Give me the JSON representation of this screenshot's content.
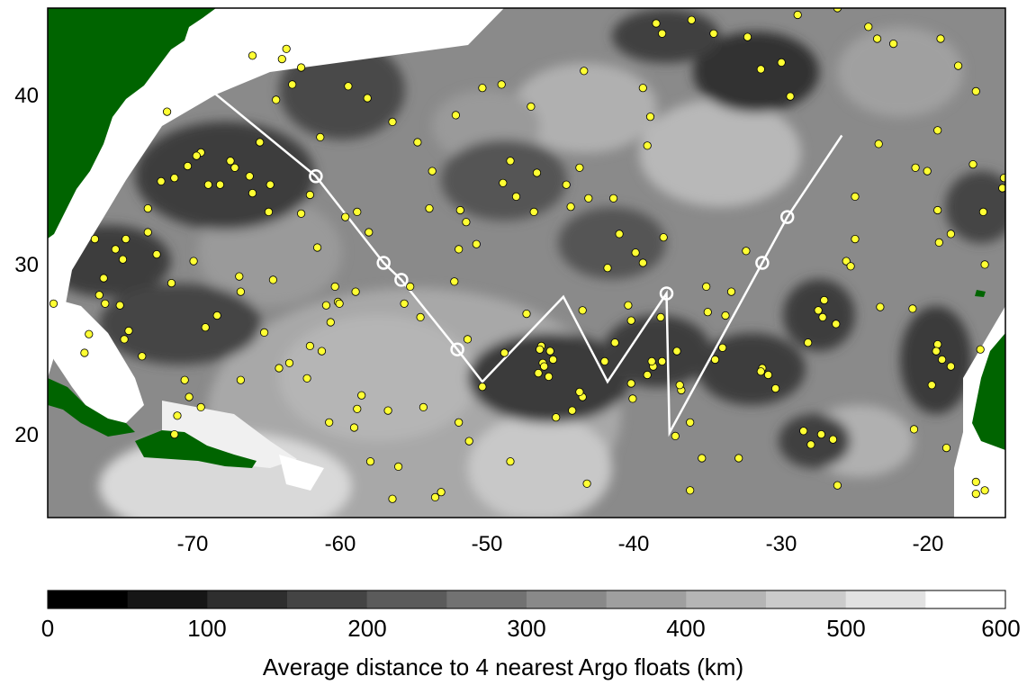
{
  "map": {
    "lon_range": [
      -80,
      -15
    ],
    "lat_range": [
      15,
      45
    ],
    "lon_ticks": [
      -70,
      -60,
      -50,
      -40,
      -30,
      -20
    ],
    "lat_ticks": [
      20,
      30,
      40
    ],
    "lon_tick_labels": [
      "-70",
      "-60",
      "-50",
      "-40",
      "-30",
      "-20"
    ],
    "lat_tick_labels": [
      "20",
      "30",
      "40"
    ],
    "colors": {
      "land": "#006400",
      "float": "#ffff33",
      "track": "#ffffff",
      "ocean_mid": "#808080"
    },
    "track_waypoints": [
      {
        "lon": -68.7,
        "lat": 40.0
      },
      {
        "lon": -61.8,
        "lat": 35.1
      },
      {
        "lon": -57.2,
        "lat": 30.0
      },
      {
        "lon": -56.0,
        "lat": 29.0
      },
      {
        "lon": -52.2,
        "lat": 24.9
      },
      {
        "lon": -50.5,
        "lat": 23.0
      },
      {
        "lon": -45.0,
        "lat": 28.0
      },
      {
        "lon": -42.0,
        "lat": 23.0
      },
      {
        "lon": -38.0,
        "lat": 28.2
      },
      {
        "lon": -37.8,
        "lat": 20.0
      },
      {
        "lon": -31.5,
        "lat": 30.0
      },
      {
        "lon": -29.8,
        "lat": 32.7
      },
      {
        "lon": -26.1,
        "lat": 37.5
      }
    ],
    "stations": [
      {
        "lon": -61.8,
        "lat": 35.1
      },
      {
        "lon": -57.2,
        "lat": 30.0
      },
      {
        "lon": -56.0,
        "lat": 29.0
      },
      {
        "lon": -52.2,
        "lat": 24.9
      },
      {
        "lon": -38.0,
        "lat": 28.2
      },
      {
        "lon": -31.5,
        "lat": 30.0
      },
      {
        "lon": -29.8,
        "lat": 32.7
      }
    ],
    "floats": [
      [
        -71.9,
        38.9
      ],
      [
        -65.6,
        37.1
      ],
      [
        -61.5,
        37.4
      ],
      [
        -59.6,
        40.4
      ],
      [
        -58.3,
        39.7
      ],
      [
        -56.6,
        38.3
      ],
      [
        -54.9,
        37.1
      ],
      [
        -52.3,
        38.7
      ],
      [
        -50.5,
        40.3
      ],
      [
        -49.2,
        40.5
      ],
      [
        -47.2,
        39.2
      ],
      [
        -46.8,
        35.3
      ],
      [
        -44.8,
        34.6
      ],
      [
        -43.9,
        35.6
      ],
      [
        -43.6,
        41.3
      ],
      [
        -41.6,
        33.8
      ],
      [
        -39.6,
        40.3
      ],
      [
        -39.1,
        38.6
      ],
      [
        -39.3,
        36.9
      ],
      [
        -38.7,
        44.1
      ],
      [
        -38.3,
        43.5
      ],
      [
        -36.3,
        44.3
      ],
      [
        -34.8,
        43.5
      ],
      [
        -32.5,
        43.3
      ],
      [
        -31.6,
        41.4
      ],
      [
        -30.2,
        41.8
      ],
      [
        -29.6,
        39.8
      ],
      [
        -29.1,
        44.6
      ],
      [
        -26.4,
        45.0
      ],
      [
        -24.3,
        43.9
      ],
      [
        -23.7,
        43.2
      ],
      [
        -22.6,
        42.9
      ],
      [
        -19.4,
        43.2
      ],
      [
        -18.2,
        41.6
      ],
      [
        -17.0,
        40.1
      ],
      [
        -19.6,
        37.8
      ],
      [
        -21.1,
        35.6
      ],
      [
        -20.3,
        35.4
      ],
      [
        -17.2,
        35.8
      ],
      [
        -15.1,
        35.0
      ],
      [
        -15.2,
        34.4
      ],
      [
        -16.5,
        33.0
      ],
      [
        -18.7,
        31.7
      ],
      [
        -19.6,
        33.1
      ],
      [
        -19.5,
        31.2
      ],
      [
        -16.4,
        29.9
      ],
      [
        -16.7,
        24.9
      ],
      [
        -19.6,
        25.2
      ],
      [
        -19.7,
        24.8
      ],
      [
        -19.3,
        24.3
      ],
      [
        -18.7,
        23.9
      ],
      [
        -20.0,
        22.8
      ],
      [
        -21.3,
        27.3
      ],
      [
        -23.5,
        27.4
      ],
      [
        -25.8,
        30.1
      ],
      [
        -25.5,
        29.8
      ],
      [
        -25.2,
        33.9
      ],
      [
        -25.2,
        31.4
      ],
      [
        -23.6,
        37.0
      ],
      [
        -27.3,
        27.8
      ],
      [
        -27.4,
        26.8
      ],
      [
        -27.7,
        27.2
      ],
      [
        -28.4,
        25.3
      ],
      [
        -26.5,
        26.4
      ],
      [
        -28.2,
        19.3
      ],
      [
        -27.5,
        19.9
      ],
      [
        -26.7,
        19.6
      ],
      [
        -28.7,
        20.1
      ],
      [
        -26.4,
        16.9
      ],
      [
        -21.2,
        20.2
      ],
      [
        -19.0,
        19.1
      ],
      [
        -17.0,
        17.1
      ],
      [
        -17.0,
        16.4
      ],
      [
        -16.4,
        16.6
      ],
      [
        -30.6,
        22.6
      ],
      [
        -31.1,
        23.4
      ],
      [
        -31.5,
        23.8
      ],
      [
        -31.6,
        23.6
      ],
      [
        -34.7,
        24.3
      ],
      [
        -34.2,
        25.0
      ],
      [
        -34.0,
        26.9
      ],
      [
        -33.6,
        28.3
      ],
      [
        -35.2,
        27.1
      ],
      [
        -35.3,
        28.6
      ],
      [
        -32.6,
        30.7
      ],
      [
        -33.1,
        18.5
      ],
      [
        -35.6,
        18.5
      ],
      [
        -36.4,
        20.6
      ],
      [
        -37.0,
        22.5
      ],
      [
        -38.3,
        24.2
      ],
      [
        -38.9,
        23.9
      ],
      [
        -39.3,
        23.4
      ],
      [
        -39.0,
        24.2
      ],
      [
        -40.4,
        22.9
      ],
      [
        -42.2,
        24.2
      ],
      [
        -43.7,
        22.1
      ],
      [
        -43.9,
        22.4
      ],
      [
        -44.4,
        21.3
      ],
      [
        -45.5,
        20.9
      ],
      [
        -45.7,
        24.3
      ],
      [
        -45.9,
        24.8
      ],
      [
        -46.4,
        24.1
      ],
      [
        -46.5,
        25.1
      ],
      [
        -47.5,
        27.0
      ],
      [
        -46.0,
        23.3
      ],
      [
        -46.7,
        23.5
      ],
      [
        -43.7,
        27.2
      ],
      [
        -40.6,
        27.5
      ],
      [
        -40.4,
        26.6
      ],
      [
        -41.5,
        25.3
      ],
      [
        -41.2,
        31.7
      ],
      [
        -42.0,
        29.7
      ],
      [
        -40.1,
        30.6
      ],
      [
        -39.6,
        30.0
      ],
      [
        -38.2,
        31.5
      ],
      [
        -38.4,
        26.8
      ],
      [
        -37.3,
        24.8
      ],
      [
        -37.1,
        22.8
      ],
      [
        -36.4,
        16.6
      ],
      [
        -37.4,
        19.8
      ],
      [
        -40.3,
        22.0
      ],
      [
        -43.4,
        17.0
      ],
      [
        -48.6,
        18.3
      ],
      [
        -51.4,
        19.5
      ],
      [
        -52.1,
        20.6
      ],
      [
        -50.5,
        22.7
      ],
      [
        -49.0,
        24.7
      ],
      [
        -46.6,
        24.9
      ],
      [
        -46.3,
        23.9
      ],
      [
        -54.5,
        21.5
      ],
      [
        -56.9,
        21.3
      ],
      [
        -53.7,
        16.2
      ],
      [
        -53.3,
        16.5
      ],
      [
        -56.2,
        18.0
      ],
      [
        -56.6,
        16.1
      ],
      [
        -54.7,
        26.8
      ],
      [
        -55.8,
        27.6
      ],
      [
        -55.4,
        28.6
      ],
      [
        -51.5,
        25.5
      ],
      [
        -52.4,
        28.9
      ],
      [
        -52.1,
        30.8
      ],
      [
        -51.6,
        32.4
      ],
      [
        -52.0,
        33.1
      ],
      [
        -53.9,
        35.4
      ],
      [
        -54.1,
        33.2
      ],
      [
        -50.9,
        31.1
      ],
      [
        -49.1,
        34.7
      ],
      [
        -48.6,
        36.0
      ],
      [
        -48.2,
        33.9
      ],
      [
        -47.0,
        33.0
      ],
      [
        -44.5,
        33.3
      ],
      [
        -43.3,
        33.8
      ],
      [
        -59.8,
        32.7
      ],
      [
        -59.0,
        33.0
      ],
      [
        -58.2,
        31.8
      ],
      [
        -59.1,
        28.3
      ],
      [
        -60.5,
        28.6
      ],
      [
        -61.1,
        27.5
      ],
      [
        -60.3,
        27.7
      ],
      [
        -61.4,
        24.8
      ],
      [
        -63.6,
        24.1
      ],
      [
        -65.3,
        25.9
      ],
      [
        -64.7,
        29.0
      ],
      [
        -62.2,
        34.0
      ],
      [
        -64.9,
        34.6
      ],
      [
        -66.1,
        34.1
      ],
      [
        -66.3,
        35.1
      ],
      [
        -68.3,
        34.6
      ],
      [
        -69.1,
        34.6
      ],
      [
        -69.6,
        36.5
      ],
      [
        -70.1,
        30.1
      ],
      [
        -69.3,
        26.2
      ],
      [
        -71.6,
        28.8
      ],
      [
        -72.6,
        30.5
      ],
      [
        -74.9,
        30.2
      ],
      [
        -75.4,
        30.8
      ],
      [
        -76.8,
        31.4
      ],
      [
        -76.5,
        28.1
      ],
      [
        -76.1,
        27.6
      ],
      [
        -75.1,
        27.5
      ],
      [
        -74.5,
        26.0
      ],
      [
        -74.8,
        25.5
      ],
      [
        -73.6,
        24.5
      ],
      [
        -70.7,
        23.1
      ],
      [
        -70.4,
        22.1
      ],
      [
        -69.6,
        21.5
      ],
      [
        -71.2,
        21.0
      ],
      [
        -71.4,
        19.9
      ],
      [
        -68.5,
        26.9
      ],
      [
        -66.9,
        28.3
      ],
      [
        -67.0,
        29.2
      ],
      [
        -66.9,
        23.1
      ],
      [
        -65.0,
        33.0
      ],
      [
        -62.8,
        32.9
      ],
      [
        -61.7,
        30.9
      ],
      [
        -60.2,
        27.6
      ],
      [
        -60.8,
        26.5
      ],
      [
        -62.2,
        25.1
      ],
      [
        -64.3,
        23.8
      ],
      [
        -62.4,
        23.2
      ],
      [
        -59.0,
        21.4
      ],
      [
        -59.2,
        20.3
      ],
      [
        -60.9,
        20.6
      ],
      [
        -58.1,
        18.3
      ],
      [
        -58.7,
        22.2
      ],
      [
        -79.6,
        27.6
      ],
      [
        -77.5,
        24.7
      ],
      [
        -77.2,
        25.8
      ],
      [
        -76.2,
        29.1
      ],
      [
        -74.7,
        31.4
      ],
      [
        -73.2,
        33.2
      ],
      [
        -73.2,
        31.8
      ],
      [
        -72.3,
        34.8
      ],
      [
        -71.4,
        35.0
      ],
      [
        -70.5,
        35.7
      ],
      [
        -69.9,
        36.3
      ],
      [
        -64.5,
        39.6
      ],
      [
        -62.8,
        41.5
      ],
      [
        -63.8,
        42.6
      ],
      [
        -64.1,
        42.0
      ],
      [
        -66.1,
        42.2
      ],
      [
        -63.4,
        40.5
      ],
      [
        -67.6,
        36.0
      ],
      [
        -67.3,
        35.6
      ]
    ]
  },
  "colorbar": {
    "min": 0,
    "max": 600,
    "step": 50,
    "tick_values": [
      0,
      100,
      200,
      300,
      400,
      500,
      600
    ],
    "tick_labels": [
      "0",
      "100",
      "200",
      "300",
      "400",
      "500",
      "600"
    ],
    "title": "Average distance to 4 nearest Argo floats (km)",
    "colors": [
      "#000000",
      "#161616",
      "#2e2e2e",
      "#444444",
      "#5b5b5b",
      "#727272",
      "#898989",
      "#9f9f9f",
      "#b5b5b5",
      "#cbcbcb",
      "#e2e2e2",
      "#ffffff"
    ]
  }
}
